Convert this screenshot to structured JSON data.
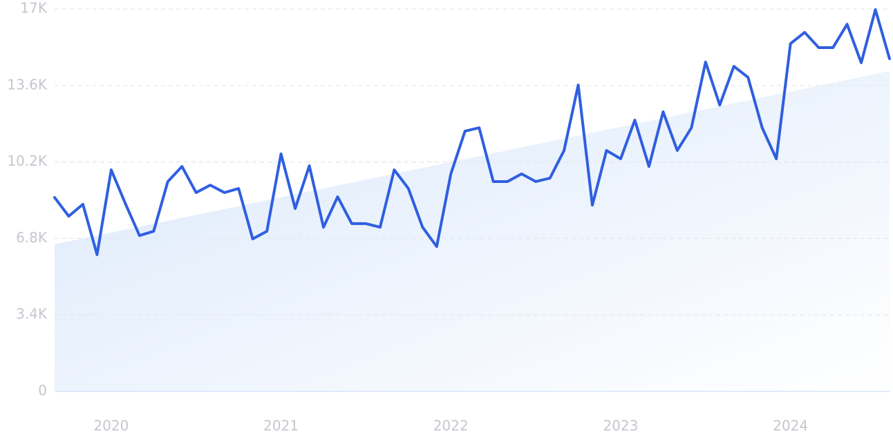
{
  "chart_data": {
    "type": "line",
    "categories": [
      null,
      null,
      null,
      null,
      "2020",
      null,
      null,
      null,
      null,
      null,
      null,
      null,
      null,
      null,
      null,
      null,
      "2021",
      null,
      null,
      null,
      null,
      null,
      null,
      null,
      null,
      null,
      null,
      null,
      "2022",
      null,
      null,
      null,
      null,
      null,
      null,
      null,
      null,
      null,
      null,
      null,
      "2023",
      null,
      null,
      null,
      null,
      null,
      null,
      null,
      null,
      null,
      null,
      null,
      "2024",
      null,
      null,
      null,
      null,
      null,
      null,
      null
    ],
    "series": [
      {
        "color": "#2f5fe0",
        "values": [
          8620,
          7790,
          8320,
          6080,
          9850,
          8350,
          6930,
          7120,
          9330,
          10000,
          8840,
          9170,
          8840,
          9020,
          6780,
          7120,
          10560,
          8130,
          10030,
          7300,
          8650,
          7460,
          7460,
          7300,
          9850,
          9020,
          7300,
          6440,
          9670,
          11570,
          11720,
          9330,
          9330,
          9670,
          9330,
          9480,
          10710,
          13620,
          8280,
          10710,
          10340,
          12060,
          10000,
          12430,
          10710,
          11720,
          14640,
          12730,
          14450,
          13960,
          11720,
          10340,
          15460,
          15960,
          15280,
          15280,
          16320,
          14610,
          16970,
          14790
        ]
      }
    ],
    "trend": [
      6540,
      14240
    ],
    "ylim": [
      0,
      17000
    ],
    "yticks": [
      0,
      {
        "value": 3400,
        "label": "3.4K"
      },
      {
        "value": 6800,
        "label": "6.8K"
      },
      {
        "value": 10200,
        "label": "10.2K"
      },
      {
        "value": 13600,
        "label": "13.6K"
      },
      {
        "value": 17000,
        "label": "17K"
      }
    ],
    "grid": true
  }
}
